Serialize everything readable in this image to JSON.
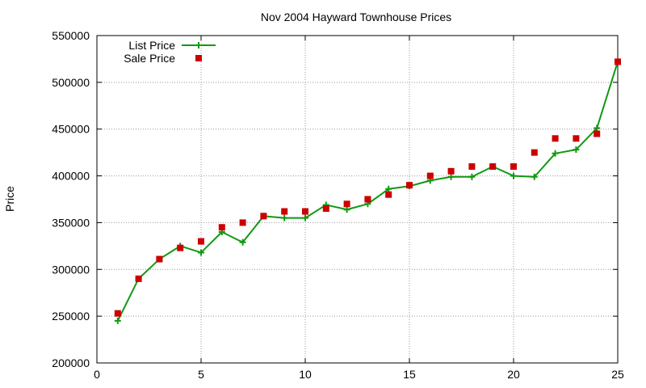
{
  "chart_data": {
    "type": "line",
    "title": "Nov 2004 Hayward Townhouse Prices",
    "xlabel": "",
    "ylabel": "Price",
    "xlim": [
      0,
      25
    ],
    "ylim": [
      200000,
      550000
    ],
    "xticks": [
      "0",
      "5",
      "10",
      "15",
      "20",
      "25"
    ],
    "yticks": [
      "200000",
      "250000",
      "300000",
      "350000",
      "400000",
      "450000",
      "500000",
      "550000"
    ],
    "grid": true,
    "legend_position": "top-left",
    "x": [
      1,
      2,
      3,
      4,
      5,
      6,
      7,
      8,
      9,
      10,
      11,
      12,
      13,
      14,
      15,
      16,
      17,
      18,
      19,
      20,
      21,
      22,
      23,
      24,
      25
    ],
    "series": [
      {
        "name": "List Price",
        "style": "lines+points",
        "color": "#119911",
        "values": [
          245000,
          290000,
          311000,
          325000,
          318000,
          340000,
          329000,
          357000,
          355000,
          355000,
          369000,
          364000,
          370000,
          386000,
          389000,
          395000,
          399000,
          399000,
          410000,
          400000,
          399000,
          424000,
          428000,
          451000,
          522000
        ]
      },
      {
        "name": "Sale Price",
        "style": "points",
        "color": "#cc0000",
        "values": [
          253000,
          290000,
          311000,
          323000,
          330000,
          345000,
          350000,
          357000,
          362000,
          362000,
          365000,
          370000,
          375000,
          380000,
          390000,
          400000,
          405000,
          410000,
          410000,
          410000,
          425000,
          440000,
          440000,
          445000,
          522000
        ]
      }
    ]
  }
}
